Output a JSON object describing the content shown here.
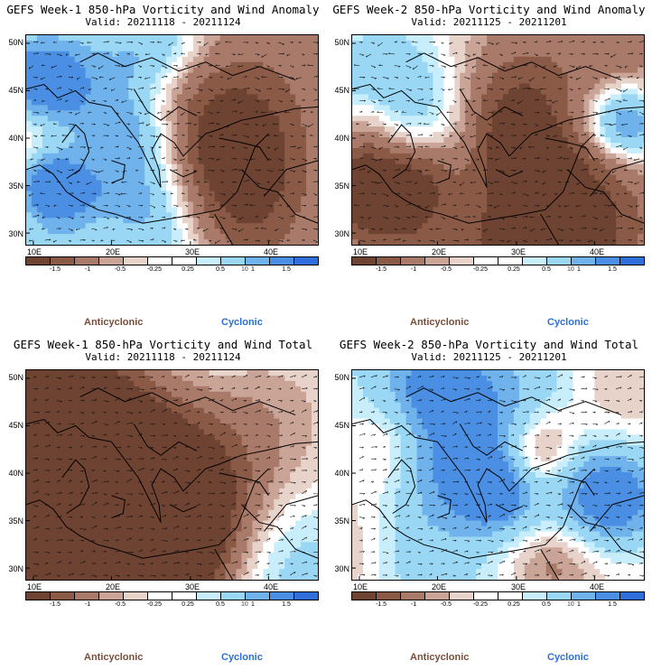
{
  "panels": [
    {
      "title": "GEFS Week-1 850-hPa Vorticity and Wind Anomaly",
      "valid": "Valid: 20211118 - 20211124",
      "seed": 11,
      "bias": 0.0
    },
    {
      "title": "GEFS Week-2 850-hPa Vorticity and Wind Anomaly",
      "valid": "Valid: 20211125 - 20211201",
      "seed": 23,
      "bias": -0.15
    },
    {
      "title": "GEFS Week-1 850-hPa Vorticity and Wind Total",
      "valid": "Valid: 20211118 - 20211124",
      "seed": 37,
      "bias": 0.05
    },
    {
      "title": "GEFS Week-2 850-hPa Vorticity and Wind Total",
      "valid": "Valid: 20211125 - 20211201",
      "seed": 51,
      "bias": 0.1
    }
  ],
  "axes": {
    "lat_labels": [
      "50N",
      "45N",
      "40N",
      "35N",
      "30N"
    ],
    "lon_labels": [
      "10E",
      "20E",
      "30E",
      "40E"
    ]
  },
  "colorbar": {
    "colors": [
      "#6e4332",
      "#8a5a47",
      "#a97a69",
      "#c9a497",
      "#e8d3cb",
      "#ffffff",
      "#ffffff",
      "#c8eefb",
      "#9ad7f4",
      "#6fb2ec",
      "#4a8fe3",
      "#2f6edb"
    ],
    "labels": [
      "-1.5",
      "-1",
      "-0.5",
      "-0.25",
      "0.25",
      "0.5",
      "1",
      "1.5"
    ],
    "ref_vector": "10"
  },
  "legend": {
    "anticyclonic": "Anticyclonic",
    "cyclonic": "Cyclonic"
  },
  "colors": {
    "anticyclonic_text": "#7a4d3b",
    "cyclonic_text": "#2a6fd6"
  }
}
